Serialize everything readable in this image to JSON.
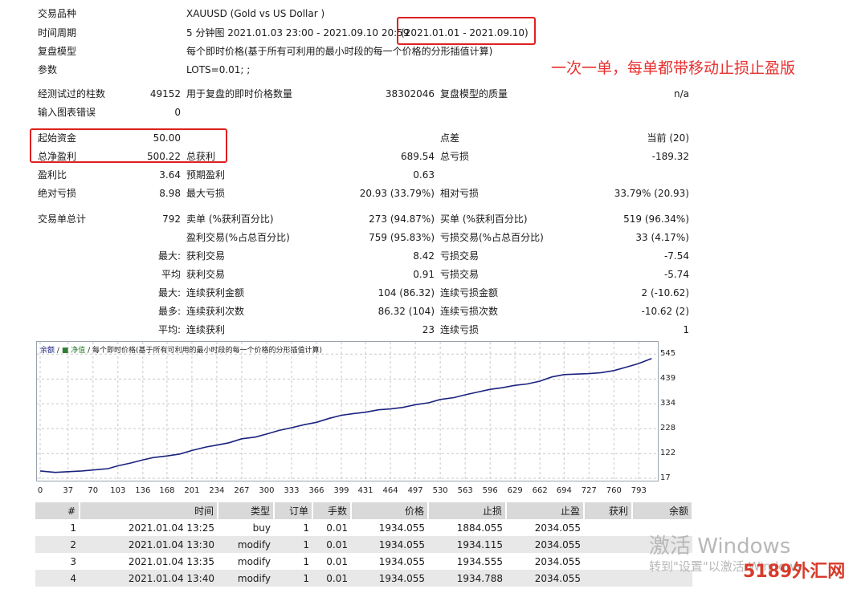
{
  "header": {
    "symbol_label": "交易品种",
    "symbol_value": "XAUUSD (Gold vs US Dollar )",
    "period_label": "时间周期",
    "period_value": "5 分钟图 2021.01.03 23:00 - 2021.09.10 20:59",
    "period_range": "(2021.01.01 - 2021.09.10)",
    "model_label": "复盘模型",
    "model_value": "每个即时价格(基于所有可利用的最小时段的每一个价格的分形插值计算)",
    "params_label": "参数",
    "params_value": "LOTS=0.01; ;"
  },
  "annotation": "一次一单，每单都带移动止损止盈版",
  "stats": {
    "bars_label": "经测试过的柱数",
    "bars_value": "49152",
    "ticks_label": "用于复盘的即时价格数量",
    "ticks_value": "38302046",
    "quality_label": "复盘模型的质量",
    "quality_value": "n/a",
    "errors_label": "输入图表错误",
    "errors_value": "0",
    "deposit_label": "起始资金",
    "deposit_value": "50.00",
    "spread_label": "点差",
    "spread_value": "当前 (20)",
    "netprofit_label": "总净盈利",
    "netprofit_value": "500.22",
    "grossprofit_label": "总获利",
    "grossprofit_value": "689.54",
    "grossloss_label": "总亏损",
    "grossloss_value": "-189.32",
    "pf_label": "盈利比",
    "pf_value": "3.64",
    "expected_label": "预期盈利",
    "expected_value": "0.63",
    "absdd_label": "绝对亏损",
    "absdd_value": "8.98",
    "maxdd_label": "最大亏损",
    "maxdd_value": "20.93 (33.79%)",
    "reldd_label": "相对亏损",
    "reldd_value": "33.79% (20.93)",
    "total_label": "交易单总计",
    "total_value": "792",
    "short_label": "卖单 (%获利百分比)",
    "short_value": "273 (94.87%)",
    "long_label": "买单 (%获利百分比)",
    "long_value": "519 (96.34%)",
    "profittr_label": "盈利交易(%占总百分比)",
    "profittr_value": "759 (95.83%)",
    "losstr_label": "亏损交易(%占总百分比)",
    "losstr_value": "33 (4.17%)",
    "largest_prefix": "最大:",
    "largest_profit_label": "获利交易",
    "largest_profit_value": "8.42",
    "largest_loss_label": "亏损交易",
    "largest_loss_value": "-7.54",
    "avg_prefix": "平均",
    "avg_profit_label": "获利交易",
    "avg_profit_value": "0.91",
    "avg_loss_label": "亏损交易",
    "avg_loss_value": "-5.74",
    "maxcons_prefix": "最大:",
    "maxcons_win_label": "连续获利金额",
    "maxcons_win_value": "104 (86.32)",
    "maxcons_loss_label": "连续亏损金额",
    "maxcons_loss_value": "2 (-10.62)",
    "mostcons_prefix": "最多:",
    "mostcons_win_label": "连续获利次数",
    "mostcons_win_value": "86.32 (104)",
    "mostcons_loss_label": "连续亏损次数",
    "mostcons_loss_value": "-10.62 (2)",
    "avgcons_prefix": "平均:",
    "avgcons_win_label": "连续获利",
    "avgcons_win_value": "23",
    "avgcons_loss_label": "连续亏损",
    "avgcons_loss_value": "1"
  },
  "chart_legend": {
    "balance": "余额",
    "sep": "/",
    "equity": "净值",
    "text": "/ 每个即时价格(基于所有可利用的最小时段的每一个价格的分形插值计算)"
  },
  "chart_data": {
    "type": "line",
    "series": [
      {
        "name": "余额",
        "color": "#1a237e",
        "x": [
          0,
          20,
          37,
          55,
          70,
          90,
          103,
          120,
          136,
          150,
          168,
          185,
          201,
          220,
          234,
          250,
          267,
          285,
          300,
          316,
          333,
          350,
          366,
          383,
          399,
          415,
          431,
          448,
          464,
          480,
          497,
          515,
          530,
          548,
          563,
          580,
          596,
          612,
          629,
          645,
          662,
          678,
          694,
          710,
          727,
          743,
          760,
          777,
          793,
          810
        ],
        "y": [
          48,
          42,
          45,
          48,
          52,
          58,
          70,
          82,
          95,
          105,
          112,
          120,
          135,
          150,
          158,
          168,
          185,
          192,
          205,
          220,
          232,
          245,
          255,
          272,
          285,
          292,
          298,
          308,
          312,
          318,
          330,
          338,
          352,
          360,
          372,
          384,
          395,
          402,
          412,
          418,
          430,
          448,
          458,
          460,
          462,
          466,
          475,
          490,
          505,
          526
        ]
      }
    ],
    "xticks": [
      "0",
      "37",
      "70",
      "103",
      "136",
      "168",
      "201",
      "234",
      "267",
      "300",
      "333",
      "366",
      "399",
      "431",
      "464",
      "497",
      "530",
      "563",
      "596",
      "629",
      "662",
      "694",
      "727",
      "760",
      "793"
    ],
    "yticks": [
      "545",
      "439",
      "334",
      "228",
      "122",
      "17"
    ],
    "xlim": [
      0,
      815
    ],
    "ylim": [
      17,
      563
    ]
  },
  "deals": {
    "headers": [
      "#",
      "时间",
      "类型",
      "订单",
      "手数",
      "价格",
      "止损",
      "止盈",
      "获利",
      "余额"
    ],
    "rows": [
      [
        "1",
        "2021.01.04 13:25",
        "buy",
        "1",
        "0.01",
        "1934.055",
        "1884.055",
        "2034.055",
        "",
        ""
      ],
      [
        "2",
        "2021.01.04 13:30",
        "modify",
        "1",
        "0.01",
        "1934.055",
        "1934.115",
        "2034.055",
        "",
        ""
      ],
      [
        "3",
        "2021.01.04 13:35",
        "modify",
        "1",
        "0.01",
        "1934.055",
        "1934.555",
        "2034.055",
        "",
        ""
      ],
      [
        "4",
        "2021.01.04 13:40",
        "modify",
        "1",
        "0.01",
        "1934.055",
        "1934.788",
        "2034.055",
        "",
        ""
      ]
    ]
  },
  "watermark": {
    "line1": "激活 Windows",
    "line2": "转到\"设置\"以激活 Windows",
    "brand": "5189外汇网"
  }
}
